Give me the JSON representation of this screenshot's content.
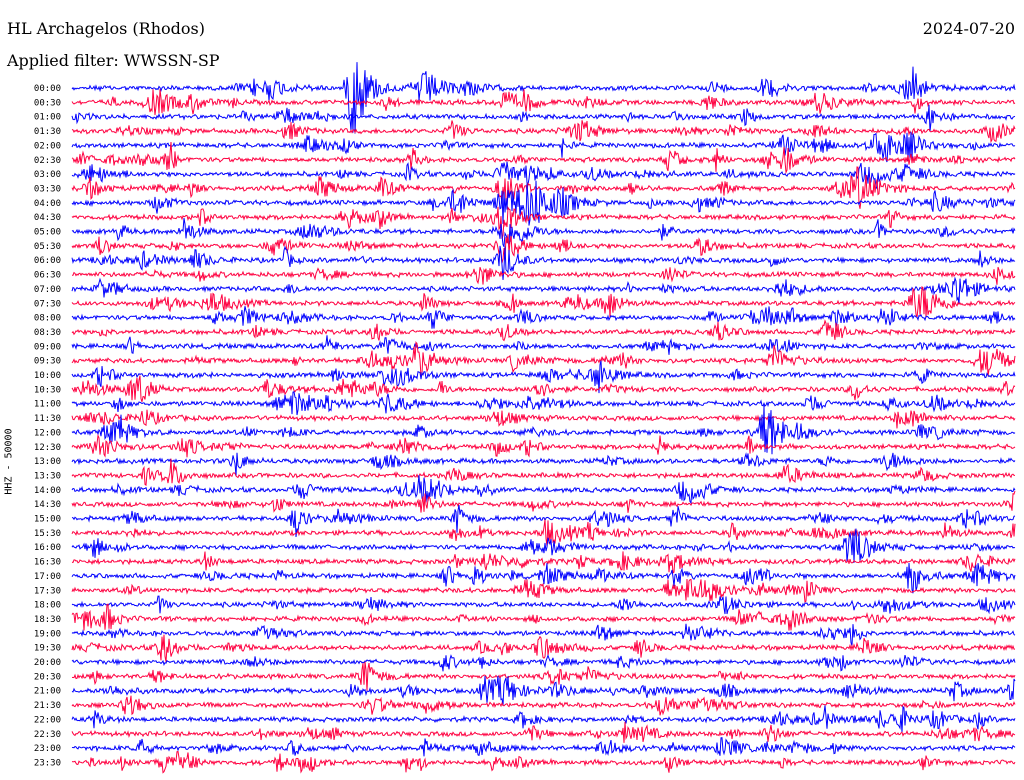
{
  "header": {
    "station": "HL Archagelos (Rhodos)",
    "date": "2024-07-20",
    "filter_text": "Applied filter: WWSSN-SP"
  },
  "chart_data": {
    "type": "line",
    "title": "HL Archagelos (Rhodos)",
    "ylabel": "HHZ - 50000",
    "time_labels": [
      "00:00",
      "00:30",
      "01:00",
      "01:30",
      "02:00",
      "02:30",
      "03:00",
      "03:30",
      "04:00",
      "04:30",
      "05:00",
      "05:30",
      "06:00",
      "06:30",
      "07:00",
      "07:30",
      "08:00",
      "08:30",
      "09:00",
      "09:30",
      "10:00",
      "10:30",
      "11:00",
      "11:30",
      "12:00",
      "12:30",
      "13:00",
      "13:30",
      "14:00",
      "14:30",
      "15:00",
      "15:30",
      "16:00",
      "16:30",
      "17:00",
      "17:30",
      "18:00",
      "18:30",
      "19:00",
      "19:30",
      "20:00",
      "20:30",
      "21:00",
      "21:30",
      "22:00",
      "22:30",
      "23:00",
      "23:30"
    ],
    "trace_colors": [
      "#0000ff",
      "#ff0040"
    ],
    "grid": false
  }
}
